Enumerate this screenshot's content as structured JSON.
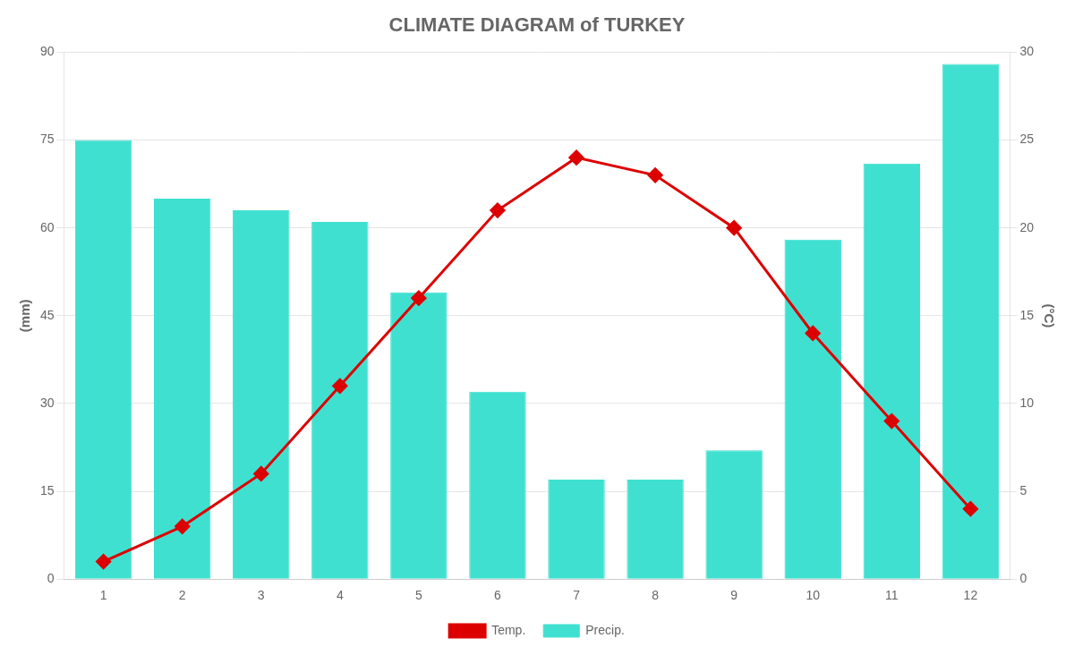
{
  "chart_data": {
    "type": "bar",
    "title": "CLIMATE DIAGRAM of TURKEY",
    "categories": [
      "1",
      "2",
      "3",
      "4",
      "5",
      "6",
      "7",
      "8",
      "9",
      "10",
      "11",
      "12"
    ],
    "series": [
      {
        "name": "Precip.",
        "type": "bar",
        "color": "#40E0D0",
        "values": [
          75,
          65,
          63,
          61,
          49,
          32,
          17,
          17,
          22,
          58,
          71,
          88
        ]
      },
      {
        "name": "Temp.",
        "type": "line",
        "color": "#DD0000",
        "marker": "diamond",
        "axis": "y2",
        "values": [
          1,
          3,
          6,
          11,
          16,
          21,
          24,
          23,
          20,
          14,
          9,
          4
        ]
      }
    ],
    "ylabel": "(mm)",
    "y2label": "(°C)",
    "ylim": [
      0,
      90
    ],
    "yticks": [
      0,
      15,
      30,
      45,
      60,
      75,
      90
    ],
    "y2lim": [
      0,
      30
    ],
    "y2ticks": [
      0,
      5,
      10,
      15,
      20,
      25,
      30
    ],
    "grid": true,
    "legend": "bottom"
  }
}
